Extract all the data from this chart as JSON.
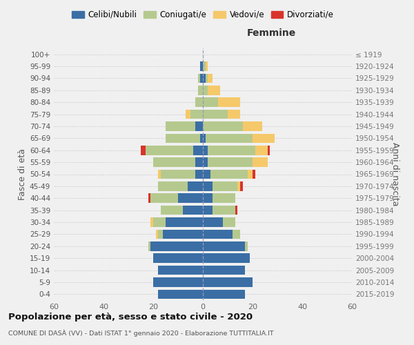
{
  "age_groups": [
    "0-4",
    "5-9",
    "10-14",
    "15-19",
    "20-24",
    "25-29",
    "30-34",
    "35-39",
    "40-44",
    "45-49",
    "50-54",
    "55-59",
    "60-64",
    "65-69",
    "70-74",
    "75-79",
    "80-84",
    "85-89",
    "90-94",
    "95-99",
    "100+"
  ],
  "birth_years": [
    "2015-2019",
    "2010-2014",
    "2005-2009",
    "2000-2004",
    "1995-1999",
    "1990-1994",
    "1985-1989",
    "1980-1984",
    "1975-1979",
    "1970-1974",
    "1965-1969",
    "1960-1964",
    "1955-1959",
    "1950-1954",
    "1945-1949",
    "1940-1944",
    "1935-1939",
    "1930-1934",
    "1925-1929",
    "1920-1924",
    "≤ 1919"
  ],
  "males": {
    "celibi": [
      18,
      20,
      18,
      20,
      21,
      16,
      15,
      8,
      10,
      6,
      3,
      3,
      4,
      1,
      3,
      0,
      0,
      0,
      1,
      1,
      0
    ],
    "coniugati": [
      0,
      0,
      0,
      0,
      1,
      2,
      5,
      9,
      11,
      12,
      14,
      17,
      19,
      14,
      12,
      5,
      3,
      2,
      1,
      0,
      0
    ],
    "vedovi": [
      0,
      0,
      0,
      0,
      0,
      1,
      1,
      0,
      0,
      0,
      1,
      0,
      0,
      0,
      0,
      2,
      0,
      0,
      0,
      0,
      0
    ],
    "divorziati": [
      0,
      0,
      0,
      0,
      0,
      0,
      0,
      0,
      1,
      0,
      0,
      0,
      2,
      0,
      0,
      0,
      0,
      0,
      0,
      0,
      0
    ]
  },
  "females": {
    "nubili": [
      17,
      20,
      17,
      19,
      17,
      12,
      8,
      4,
      4,
      4,
      3,
      2,
      2,
      1,
      0,
      0,
      0,
      0,
      1,
      0,
      0
    ],
    "coniugate": [
      0,
      0,
      0,
      0,
      1,
      3,
      5,
      9,
      9,
      10,
      15,
      18,
      19,
      19,
      16,
      10,
      6,
      2,
      1,
      1,
      0
    ],
    "vedove": [
      0,
      0,
      0,
      0,
      0,
      0,
      0,
      0,
      0,
      1,
      2,
      6,
      5,
      9,
      8,
      5,
      9,
      5,
      2,
      1,
      0
    ],
    "divorziate": [
      0,
      0,
      0,
      0,
      0,
      0,
      0,
      1,
      0,
      1,
      1,
      0,
      1,
      0,
      0,
      0,
      0,
      0,
      0,
      0,
      0
    ]
  },
  "colors": {
    "celibi": "#3a6ea5",
    "coniugati": "#b5c98e",
    "vedovi": "#f5c96a",
    "divorziati": "#d9342b"
  },
  "xlim": 60,
  "title": "Popolazione per età, sesso e stato civile - 2020",
  "subtitle": "COMUNE DI DASÀ (VV) - Dati ISTAT 1° gennaio 2020 - Elaborazione TUTTITALIA.IT",
  "xlabel_right": "Femmine",
  "ylabel_left": "Fasce di età",
  "ylabel_right": "Anni di nascita",
  "legend_labels": [
    "Celibi/Nubili",
    "Coniugati/e",
    "Vedovi/e",
    "Divorziati/e"
  ]
}
